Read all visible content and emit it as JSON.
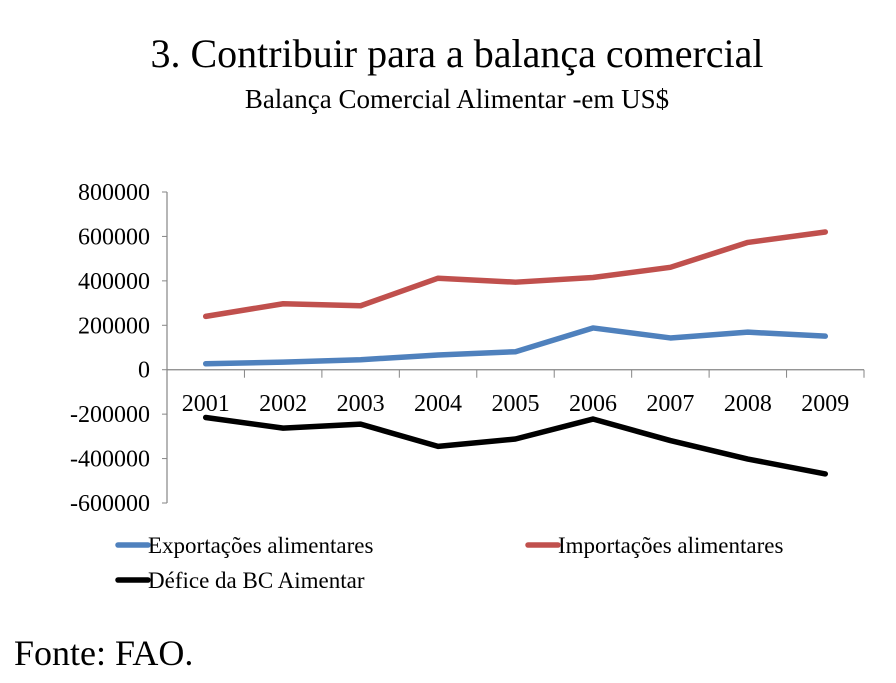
{
  "chart_data": {
    "type": "line",
    "title": "3. Contribuir para a balança comercial",
    "subtitle": "Balança Comercial Alimentar -em US$",
    "xlabel": "",
    "ylabel": "",
    "categories": [
      "2001",
      "2002",
      "2003",
      "2004",
      "2005",
      "2006",
      "2007",
      "2008",
      "2009"
    ],
    "ylim": [
      -600000,
      800000
    ],
    "yticks": [
      800000,
      600000,
      400000,
      200000,
      0,
      -200000,
      -400000,
      -600000
    ],
    "ytick_labels": [
      "800000",
      "600000",
      "400000",
      "200000",
      "0",
      "-200000",
      "-400000",
      "-600000"
    ],
    "grid": false,
    "legend_position": "bottom",
    "series": [
      {
        "name": "Exportações alimentares",
        "color": "#4F81BD",
        "values": [
          27000,
          34000,
          45000,
          66000,
          81000,
          188000,
          143000,
          169000,
          151000
        ]
      },
      {
        "name": "Importações alimentares",
        "color": "#C0504D",
        "values": [
          240000,
          297000,
          288000,
          412000,
          394000,
          415000,
          461000,
          573000,
          620000
        ]
      },
      {
        "name": "Défice da BC Aimentar",
        "color": "#000000",
        "values": [
          -215000,
          -263000,
          -245000,
          -345000,
          -312000,
          -222000,
          -319000,
          -402000,
          -469000
        ]
      }
    ]
  },
  "source": "Fonte: FAO."
}
